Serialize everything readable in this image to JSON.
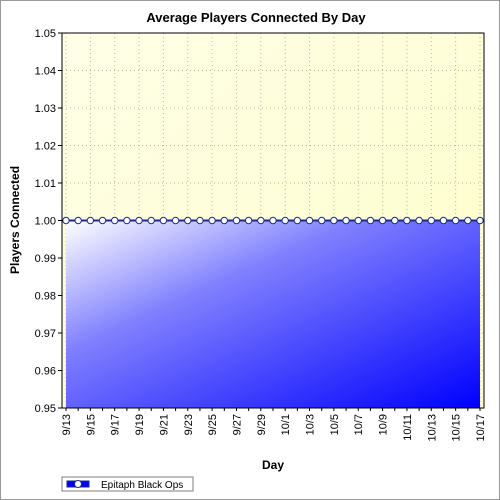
{
  "chart_data": {
    "type": "area",
    "title": "Average Players Connected By Day",
    "xlabel": "Day",
    "ylabel": "Players Connected",
    "ylim": [
      0.95,
      1.05
    ],
    "y_ticks": [
      "0.95",
      "0.96",
      "0.97",
      "0.98",
      "0.99",
      "1.00",
      "1.01",
      "1.02",
      "1.03",
      "1.04",
      "1.05"
    ],
    "x_tick_labels": [
      "9/13",
      "9/15",
      "9/17",
      "9/19",
      "9/21",
      "9/23",
      "9/25",
      "9/27",
      "9/29",
      "10/1",
      "10/3",
      "10/5",
      "10/7",
      "10/9",
      "10/11",
      "10/13",
      "10/15",
      "10/17"
    ],
    "x": [
      "9/13",
      "9/14",
      "9/15",
      "9/16",
      "9/17",
      "9/18",
      "9/19",
      "9/20",
      "9/21",
      "9/22",
      "9/23",
      "9/24",
      "9/25",
      "9/26",
      "9/27",
      "9/28",
      "9/29",
      "9/30",
      "10/1",
      "10/2",
      "10/3",
      "10/4",
      "10/5",
      "10/6",
      "10/7",
      "10/8",
      "10/9",
      "10/10",
      "10/11",
      "10/12",
      "10/13",
      "10/14",
      "10/15",
      "10/16",
      "10/17"
    ],
    "series": [
      {
        "name": "Epitaph Black Ops",
        "values": [
          1,
          1,
          1,
          1,
          1,
          1,
          1,
          1,
          1,
          1,
          1,
          1,
          1,
          1,
          1,
          1,
          1,
          1,
          1,
          1,
          1,
          1,
          1,
          1,
          1,
          1,
          1,
          1,
          1,
          1,
          1,
          1,
          1,
          1,
          1
        ]
      }
    ],
    "grid": true,
    "legend": "bottom-left",
    "colors": {
      "plot_background": "#ffffe0",
      "area_light": "#ffffff",
      "area_dark": "#0000ff",
      "line": "#1e2a8a",
      "marker_fill": "#ffffff"
    }
  }
}
